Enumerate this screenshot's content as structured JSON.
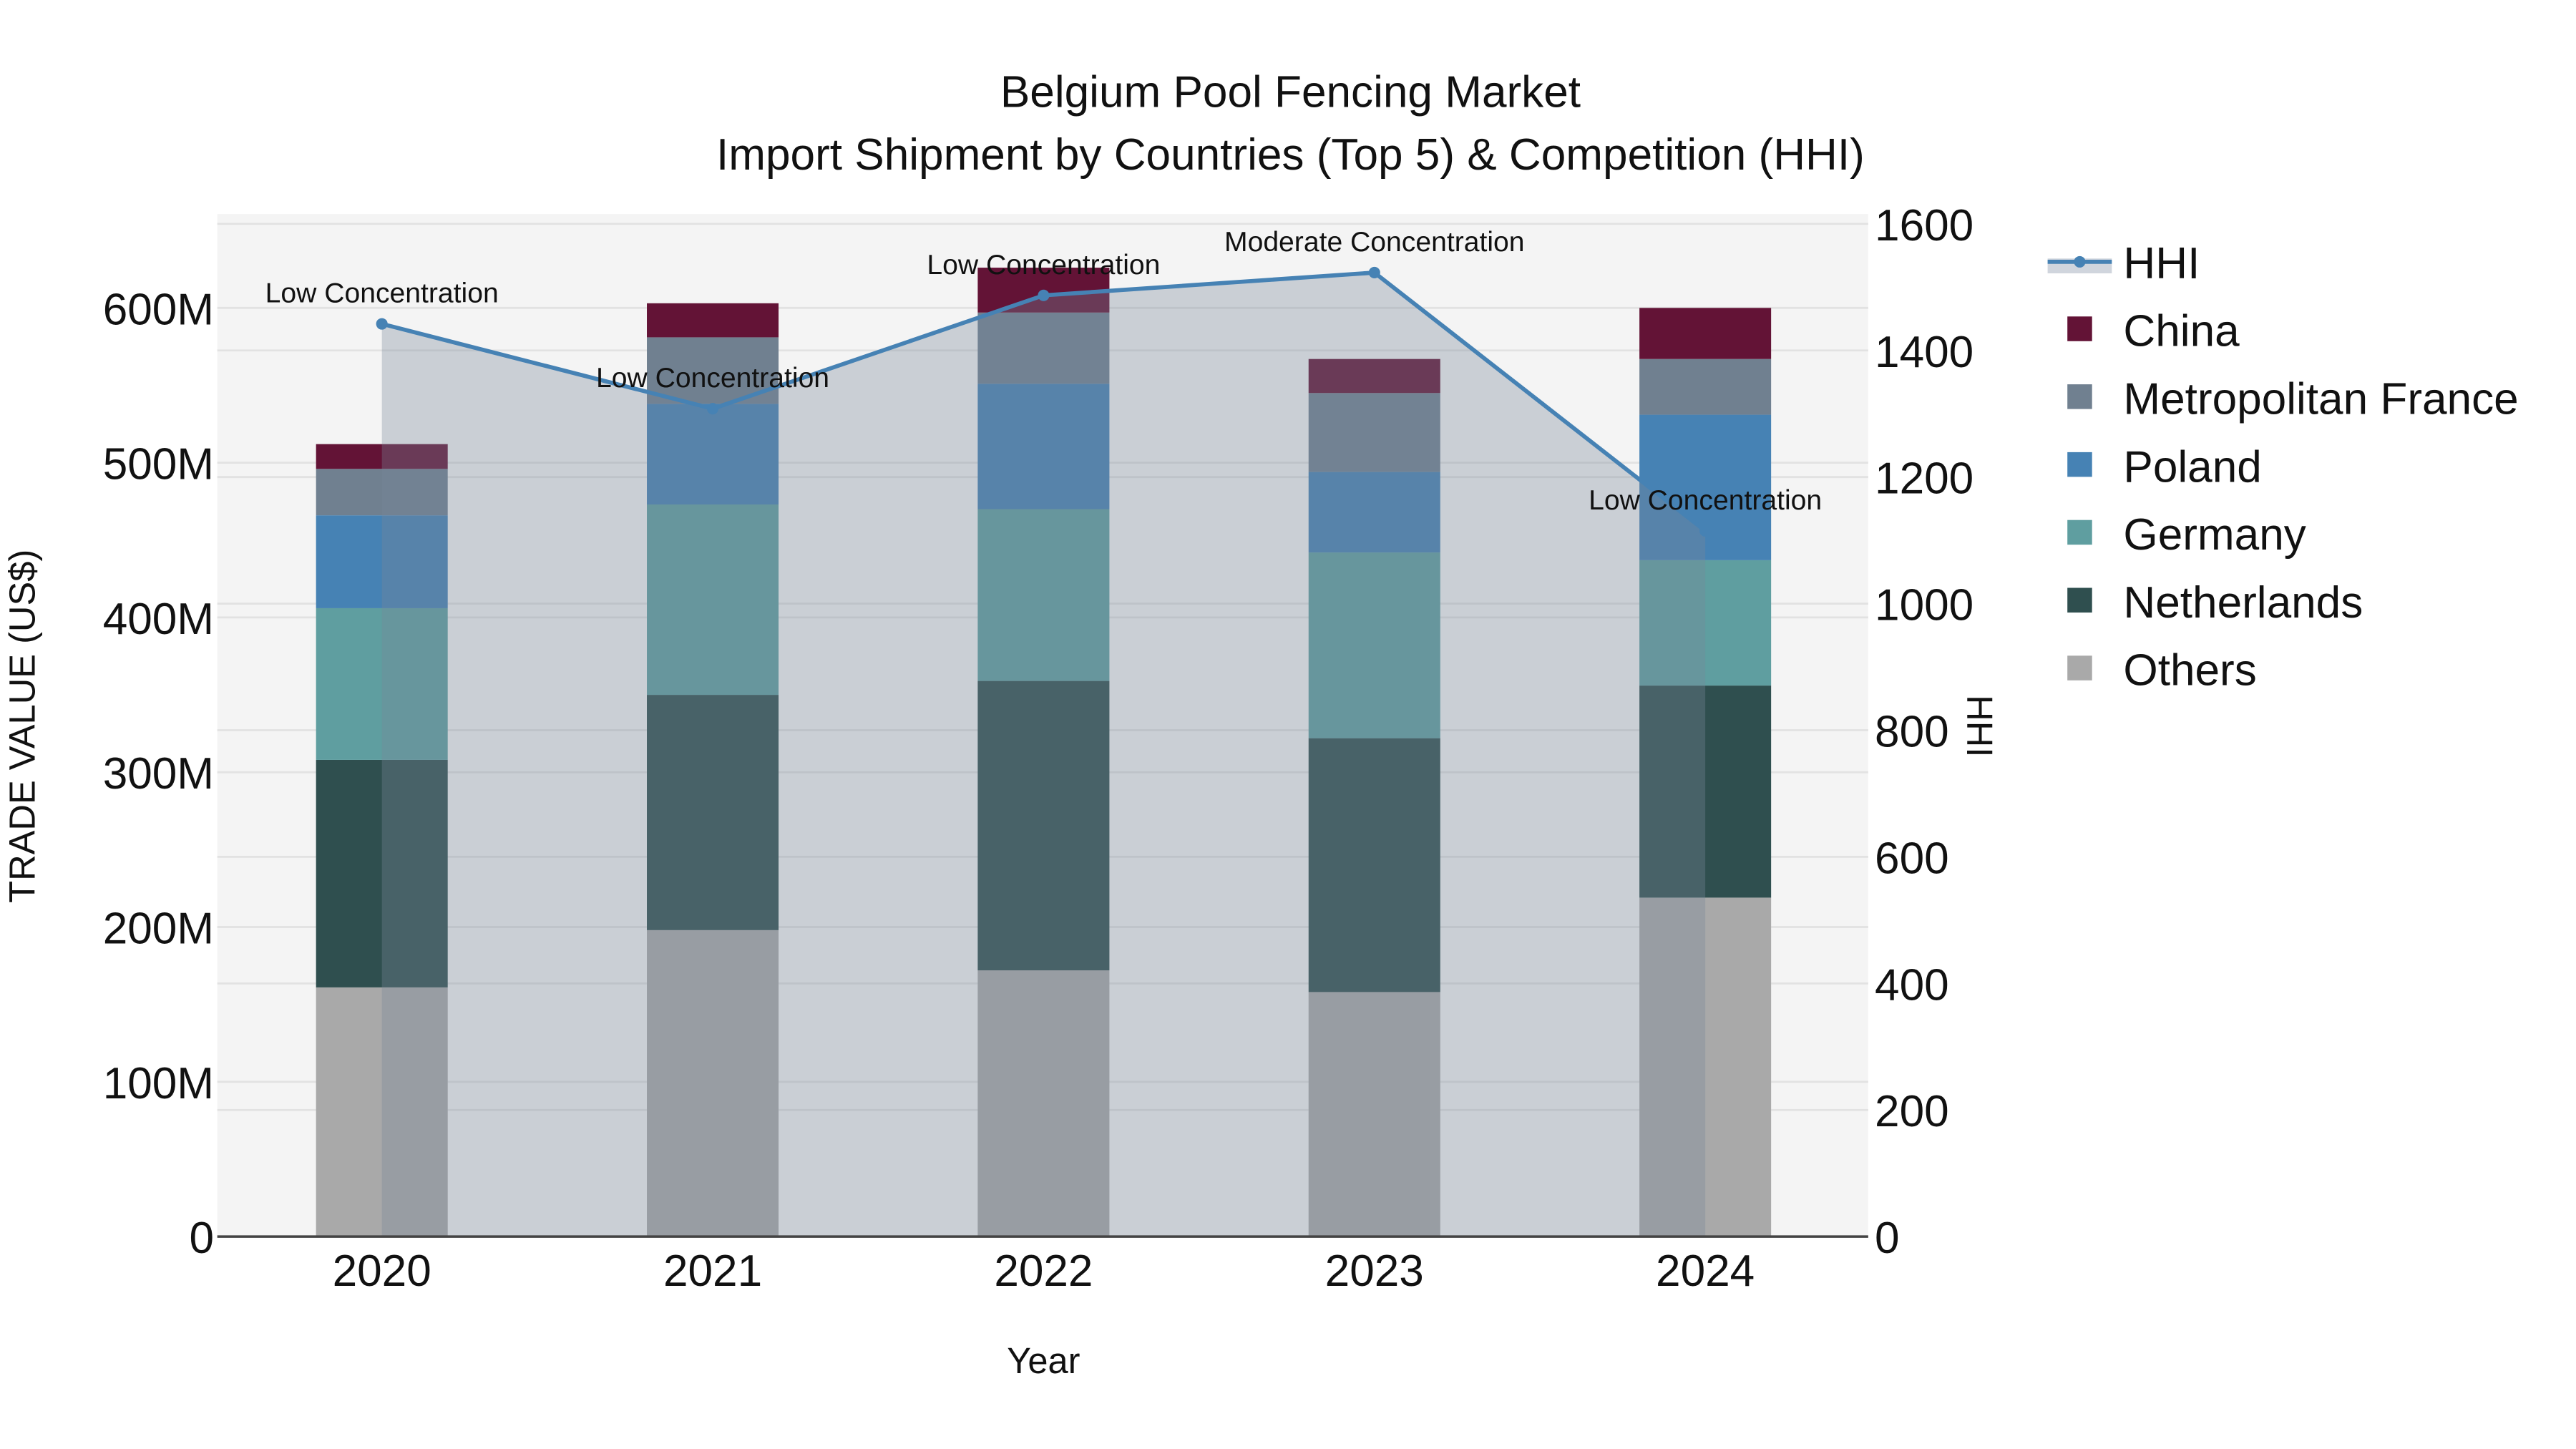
{
  "chart_data": {
    "type": "bar",
    "subtype": "stacked-bar-with-line-area",
    "title": "Belgium Pool Fencing Market",
    "subtitle": "Import Shipment by Countries (Top 5) & Competition (HHI)",
    "xlabel": "Year",
    "ylabel": "TRADE VALUE (US$)",
    "y2label": "HHI",
    "categories": [
      "2020",
      "2021",
      "2022",
      "2023",
      "2024"
    ],
    "ylim": [
      0,
      660000000
    ],
    "y_ticks": [
      0,
      100000000,
      200000000,
      300000000,
      400000000,
      500000000,
      600000000
    ],
    "y_tick_labels": [
      "0",
      "100M",
      "200M",
      "300M",
      "400M",
      "500M",
      "600M"
    ],
    "y2lim": [
      0,
      1620
    ],
    "y2_ticks": [
      0,
      200,
      400,
      600,
      800,
      1000,
      1200,
      1400,
      1600
    ],
    "y2_tick_labels": [
      "0",
      "200",
      "400",
      "600",
      "800",
      "1000",
      "1200",
      "1400",
      "1600"
    ],
    "grid": true,
    "legend_position": "right",
    "series": [
      {
        "name": "Others",
        "color": "#a9a9a9",
        "values": [
          161000000,
          198000000,
          172000000,
          158000000,
          219000000
        ]
      },
      {
        "name": "Netherlands",
        "color": "#2f4f4f",
        "values": [
          147000000,
          152000000,
          187000000,
          164000000,
          137000000
        ]
      },
      {
        "name": "Germany",
        "color": "#5f9ea0",
        "values": [
          98000000,
          123000000,
          111000000,
          120000000,
          81000000
        ]
      },
      {
        "name": "Poland",
        "color": "#4682b4",
        "values": [
          60000000,
          65000000,
          81000000,
          52000000,
          94000000
        ]
      },
      {
        "name": "Metropolitan France",
        "color": "#708090",
        "values": [
          30000000,
          43000000,
          46000000,
          51000000,
          36000000
        ]
      },
      {
        "name": "China",
        "color": "#631336",
        "values": [
          16000000,
          22000000,
          29000000,
          22000000,
          33000000
        ]
      }
    ],
    "line_series": {
      "name": "HHI",
      "axis": "y2",
      "color": "#4682b4",
      "fill": true,
      "values": [
        1442,
        1308,
        1487,
        1523,
        1115
      ]
    },
    "annotations": [
      {
        "year": "2020",
        "text": "Low Concentration"
      },
      {
        "year": "2021",
        "text": "Low Concentration"
      },
      {
        "year": "2022",
        "text": "Low Concentration"
      },
      {
        "year": "2023",
        "text": "Moderate Concentration"
      },
      {
        "year": "2024",
        "text": "Low Concentration"
      }
    ]
  },
  "legend": {
    "items": [
      {
        "label": "HHI",
        "color": "#4682b4",
        "kind": "line"
      },
      {
        "label": "China",
        "color": "#631336",
        "kind": "square"
      },
      {
        "label": "Metropolitan France",
        "color": "#708090",
        "kind": "square"
      },
      {
        "label": "Poland",
        "color": "#4682b4",
        "kind": "square"
      },
      {
        "label": "Germany",
        "color": "#5f9ea0",
        "kind": "square"
      },
      {
        "label": "Netherlands",
        "color": "#2f4f4f",
        "kind": "square"
      },
      {
        "label": "Others",
        "color": "#a9a9a9",
        "kind": "square"
      }
    ]
  },
  "colors": {
    "plot_bg": "#f4f4f4",
    "grid": "#e2e2e2",
    "axis_line": "#444444",
    "hhi_fill": "rgba(119,136,153,0.34)"
  }
}
